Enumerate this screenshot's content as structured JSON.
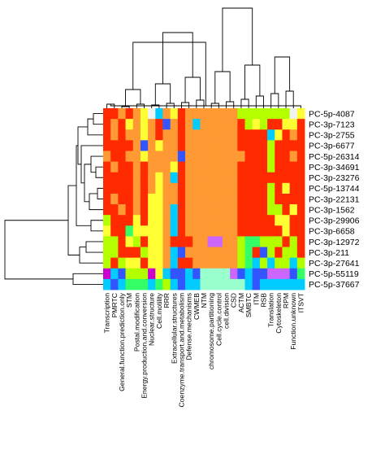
{
  "chart_data": {
    "type": "heatmap",
    "rows": [
      "PC-5p-4087",
      "PC-3p-7123",
      "PC-3p-2755",
      "PC-3p-6677",
      "PC-5p-26314",
      "PC-3p-34691",
      "PC-3p-23276",
      "PC-5p-13744",
      "PC-3p-22131",
      "PC-3p-1562",
      "PC-3p-29906",
      "PC-3p-6658",
      "PC-3p-12972",
      "PC-3p-211",
      "PC-3p-27641",
      "PC-5p-55119",
      "PC-5p-37667"
    ],
    "columns": [
      "Transcription",
      "PMRTC",
      "General.function.prediction.only",
      "STM",
      "Postal.modification",
      "Energy.production.and.conversion",
      "Nuclear.structure",
      "Cell.motility",
      "RRR",
      "Extracellular.structures",
      "Coenzyme.transport.and.metabolism",
      "Defense.mechanisms",
      "CWMEB",
      "NTM",
      "chromosome.partitioning",
      "Cell.cycle.control",
      "cell.division",
      "CSD",
      "ACTM",
      "SMBTC",
      "ITM",
      "RSB",
      "Translation",
      "Cytoskeleton",
      "RPM",
      "Function.unknown",
      "ITSVT"
    ],
    "palette": [
      "#f2f2f2",
      "#ff9933",
      "#ff2a00",
      "#ffff33",
      "#b3ff00",
      "#33ff66",
      "#00ccff",
      "#3355ff",
      "#cc00cc",
      "#99ffcc",
      "#cc66ff"
    ],
    "cells": [
      [
        2,
        2,
        1,
        2,
        1,
        3,
        0,
        6,
        1,
        3,
        2,
        1,
        1,
        1,
        1,
        1,
        1,
        1,
        4,
        4,
        4,
        4,
        4,
        4,
        4,
        0,
        3
      ],
      [
        2,
        1,
        2,
        3,
        1,
        3,
        1,
        2,
        7,
        1,
        2,
        1,
        6,
        1,
        1,
        1,
        1,
        1,
        2,
        4,
        3,
        4,
        2,
        2,
        3,
        3,
        2
      ],
      [
        2,
        1,
        2,
        1,
        1,
        3,
        1,
        2,
        1,
        1,
        2,
        1,
        1,
        1,
        1,
        1,
        1,
        1,
        2,
        2,
        2,
        2,
        6,
        3,
        2,
        1,
        2
      ],
      [
        2,
        2,
        2,
        2,
        1,
        7,
        1,
        3,
        1,
        1,
        2,
        1,
        1,
        1,
        1,
        1,
        1,
        1,
        2,
        2,
        2,
        2,
        4,
        2,
        2,
        2,
        2
      ],
      [
        1,
        2,
        2,
        1,
        1,
        3,
        1,
        1,
        1,
        1,
        7,
        1,
        1,
        1,
        1,
        1,
        1,
        1,
        1,
        2,
        2,
        2,
        4,
        2,
        2,
        1,
        2
      ],
      [
        2,
        1,
        2,
        2,
        1,
        2,
        1,
        1,
        1,
        3,
        2,
        1,
        1,
        1,
        1,
        1,
        1,
        1,
        2,
        2,
        2,
        2,
        4,
        2,
        2,
        2,
        2
      ],
      [
        2,
        2,
        2,
        2,
        1,
        2,
        1,
        3,
        1,
        6,
        2,
        1,
        1,
        1,
        1,
        1,
        1,
        1,
        2,
        2,
        2,
        2,
        2,
        2,
        2,
        2,
        2
      ],
      [
        2,
        2,
        2,
        2,
        1,
        2,
        1,
        3,
        1,
        1,
        2,
        1,
        1,
        1,
        1,
        1,
        1,
        1,
        2,
        2,
        2,
        2,
        4,
        2,
        3,
        2,
        2
      ],
      [
        2,
        1,
        2,
        2,
        1,
        2,
        3,
        3,
        1,
        1,
        2,
        1,
        1,
        1,
        1,
        1,
        1,
        1,
        2,
        2,
        2,
        2,
        4,
        2,
        2,
        2,
        2
      ],
      [
        2,
        2,
        1,
        2,
        1,
        2,
        3,
        3,
        1,
        6,
        2,
        1,
        1,
        1,
        1,
        1,
        1,
        1,
        2,
        2,
        2,
        2,
        4,
        4,
        2,
        3,
        2
      ],
      [
        4,
        2,
        2,
        2,
        3,
        2,
        3,
        3,
        1,
        6,
        2,
        1,
        1,
        1,
        1,
        1,
        1,
        1,
        2,
        2,
        2,
        2,
        2,
        3,
        3,
        2,
        2
      ],
      [
        3,
        2,
        2,
        5,
        3,
        3,
        3,
        3,
        1,
        6,
        2,
        1,
        1,
        1,
        1,
        1,
        1,
        1,
        2,
        2,
        2,
        2,
        2,
        2,
        3,
        2,
        2
      ],
      [
        4,
        4,
        2,
        3,
        4,
        2,
        3,
        3,
        1,
        2,
        2,
        2,
        1,
        1,
        10,
        10,
        1,
        1,
        4,
        5,
        5,
        4,
        4,
        4,
        2,
        4,
        2
      ],
      [
        4,
        4,
        2,
        2,
        2,
        4,
        3,
        3,
        1,
        6,
        7,
        1,
        1,
        1,
        1,
        1,
        1,
        1,
        4,
        5,
        2,
        7,
        4,
        2,
        4,
        4,
        2
      ],
      [
        4,
        2,
        4,
        3,
        3,
        2,
        3,
        3,
        1,
        6,
        2,
        2,
        1,
        1,
        1,
        1,
        1,
        1,
        4,
        5,
        6,
        4,
        6,
        4,
        4,
        6,
        4
      ],
      [
        8,
        6,
        7,
        4,
        4,
        4,
        8,
        3,
        6,
        7,
        7,
        6,
        7,
        9,
        9,
        9,
        9,
        10,
        7,
        6,
        7,
        7,
        10,
        10,
        10,
        7,
        5
      ],
      [
        6,
        7,
        6,
        5,
        5,
        5,
        6,
        5,
        4,
        6,
        7,
        6,
        6,
        9,
        9,
        9,
        9,
        9,
        9,
        6,
        7,
        6,
        6,
        6,
        6,
        6,
        6
      ]
    ]
  }
}
